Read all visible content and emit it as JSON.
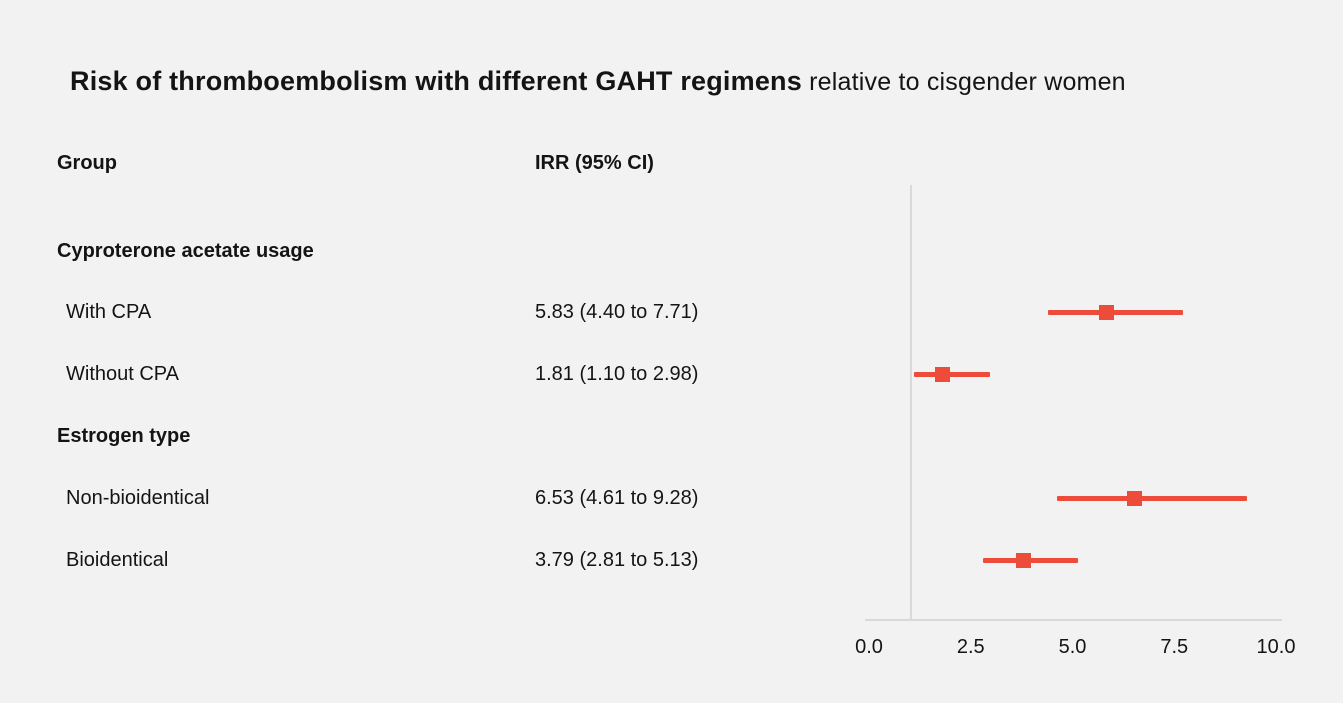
{
  "title": {
    "main": "Risk of thromboembolism with different GAHT regimens",
    "suffix": " relative to cisgender women"
  },
  "columns": {
    "group": "Group",
    "irr": "IRR (95% CI)"
  },
  "colors": {
    "background": "#f2f2f2",
    "marker": "#ee4c3a",
    "axis": "#d9d9d9",
    "text": "#141414"
  },
  "chart_data": {
    "type": "scatter",
    "subtype": "forest-plot",
    "title": "Risk of thromboembolism with different GAHT regimens relative to cisgender women",
    "xlabel": "",
    "ylabel": "",
    "xlim": [
      0,
      10
    ],
    "reference_line_x": 1,
    "tick_values": [
      0,
      2.5,
      5,
      7.5,
      10
    ],
    "tick_labels": [
      "0.0",
      "2.5",
      "5.0",
      "7.5",
      "10.0"
    ],
    "grid": false,
    "legend": "none",
    "rows": [
      {
        "kind": "heading",
        "label": "Cyproterone acetate usage"
      },
      {
        "kind": "data",
        "label": "With CPA",
        "irr_text": "5.83 (4.40 to 7.71)",
        "irr": 5.83,
        "ci_low": 4.4,
        "ci_high": 7.71
      },
      {
        "kind": "data",
        "label": "Without CPA",
        "irr_text": "1.81 (1.10 to 2.98)",
        "irr": 1.81,
        "ci_low": 1.1,
        "ci_high": 2.98
      },
      {
        "kind": "heading",
        "label": "Estrogen type"
      },
      {
        "kind": "data",
        "label": "Non-bioidentical",
        "irr_text": "6.53 (4.61 to 9.28)",
        "irr": 6.53,
        "ci_low": 4.61,
        "ci_high": 9.28
      },
      {
        "kind": "data",
        "label": "Bioidentical",
        "irr_text": "3.79 (2.81 to 5.13)",
        "irr": 3.79,
        "ci_low": 2.81,
        "ci_high": 5.13
      }
    ]
  }
}
